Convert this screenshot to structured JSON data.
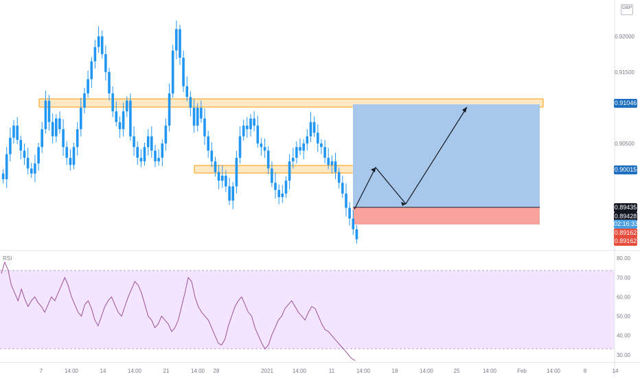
{
  "chart_data": [
    {
      "type": "candlestick",
      "instrument_currency": "GBP",
      "price_axis": {
        "ticks": [
          "0.92000",
          "0.91500",
          "0.91046",
          "0.90500",
          "0.90015",
          "0.89435",
          "0.89428",
          "02:16:33",
          "0.89162",
          "0.89162"
        ],
        "gridless": true
      },
      "time_axis": {
        "ticks": [
          "7",
          "14:00",
          "14",
          "14:00",
          "21",
          "14:00",
          "28",
          "2021",
          "14:00",
          "11",
          "14:00",
          "18",
          "14:00",
          "25",
          "14:00",
          "Feb",
          "14:00",
          "8",
          "14"
        ]
      },
      "candle_color": "#2196f3",
      "price_range_visible": [
        0.8905,
        0.9245
      ],
      "closes": [
        0.9,
        0.9035,
        0.9058,
        0.9075,
        0.9055,
        0.904,
        0.903,
        0.9015,
        0.9008,
        0.9022,
        0.9045,
        0.907,
        0.911,
        0.908,
        0.906,
        0.9085,
        0.907,
        0.9045,
        0.903,
        0.902,
        0.9045,
        0.907,
        0.91,
        0.912,
        0.914,
        0.9165,
        0.9185,
        0.92,
        0.9175,
        0.915,
        0.912,
        0.9095,
        0.908,
        0.907,
        0.9095,
        0.911,
        0.906,
        0.9045,
        0.903,
        0.9025,
        0.9045,
        0.906,
        0.904,
        0.9025,
        0.903,
        0.905,
        0.9075,
        0.912,
        0.918,
        0.921,
        0.917,
        0.913,
        0.9115,
        0.91,
        0.9075,
        0.91,
        0.9085,
        0.906,
        0.904,
        0.9025,
        0.901,
        0.8998,
        0.9005,
        0.899,
        0.897,
        0.899,
        0.903,
        0.906,
        0.9075,
        0.907,
        0.9085,
        0.9075,
        0.905,
        0.9045,
        0.904,
        0.9015,
        0.8995,
        0.8985,
        0.8975,
        0.898,
        0.8998,
        0.9025,
        0.903,
        0.9045,
        0.904,
        0.905,
        0.906,
        0.908,
        0.9065,
        0.905,
        0.9045,
        0.903,
        0.902,
        0.9025,
        0.901,
        0.8995,
        0.898,
        0.896,
        0.8945,
        0.893,
        0.8916
      ]
    },
    {
      "type": "line",
      "title": "RSI",
      "y_axis_ticks": [
        "80.00",
        "70.00",
        "60.00",
        "50.00",
        "40.00",
        "30.00"
      ],
      "ylim": [
        26,
        84
      ],
      "overbought": 70,
      "oversold": 30,
      "band_color": "#f3e5ff",
      "line_color": "#9c4f96",
      "values": [
        72,
        78,
        74,
        66,
        62,
        58,
        64,
        59,
        55,
        58,
        60,
        57,
        55,
        52,
        56,
        60,
        58,
        62,
        66,
        70,
        66,
        60,
        56,
        52,
        50,
        56,
        58,
        54,
        48,
        45,
        50,
        55,
        58,
        60,
        56,
        52,
        50,
        55,
        60,
        64,
        68,
        66,
        62,
        56,
        50,
        48,
        44,
        46,
        50,
        48,
        46,
        42,
        44,
        48,
        55,
        62,
        70,
        68,
        60,
        55,
        52,
        50,
        48,
        44,
        40,
        36,
        35,
        38,
        45,
        50,
        55,
        58,
        60,
        56,
        52,
        50,
        44,
        40,
        36,
        33,
        35,
        40,
        44,
        48,
        50,
        54,
        56,
        58,
        55,
        52,
        50,
        48,
        52,
        55,
        54,
        50,
        46,
        43,
        42,
        40,
        38,
        36,
        34,
        32,
        30,
        28,
        27
      ]
    }
  ],
  "price_labels": {
    "top_zone": "0.91046",
    "mid_zone": "0.90015",
    "entry_top": "0.89435",
    "entry": "0.89428",
    "countdown": "02:16:33",
    "stop_a": "0.89162",
    "stop_b": "0.89162"
  },
  "colors": {
    "zone_fill": "#ffe0b2",
    "zone_border": "#ff9800",
    "target_fill": "#a7c8ea",
    "stop_fill": "#f8a39b",
    "badge_blue": "#1e6fbf",
    "badge_black": "#131722",
    "badge_sky": "#4a9ee0",
    "badge_red": "#e74c3c"
  }
}
